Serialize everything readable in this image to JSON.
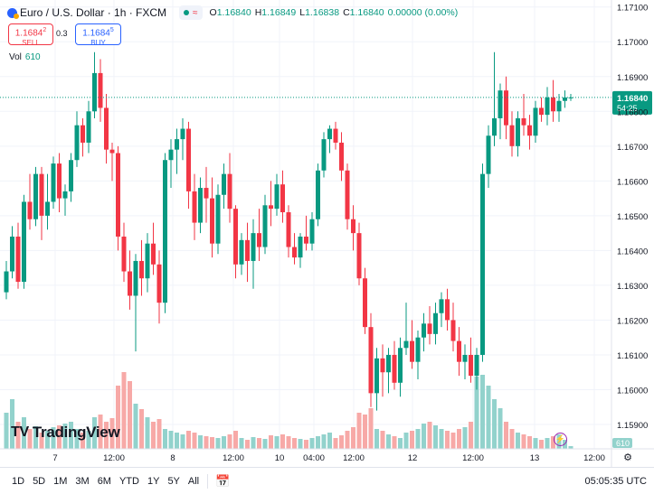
{
  "header": {
    "title": "Euro / U.S. Dollar · 1h · FXCM",
    "ohlc": [
      {
        "k": "O",
        "v": "1.16840"
      },
      {
        "k": "H",
        "v": "1.16849"
      },
      {
        "k": "L",
        "v": "1.16838"
      },
      {
        "k": "C",
        "v": "1.16840"
      },
      {
        "k": "",
        "v": "0.00000 (0.00%)"
      }
    ]
  },
  "trade": {
    "sell_price_main": "1.1684",
    "sell_price_sup": "2",
    "sell_label": "SELL",
    "spread": "0.3",
    "buy_price_main": "1.1684",
    "buy_price_sup": "5",
    "buy_label": "BUY"
  },
  "volume": {
    "label": "Vol",
    "value": "610",
    "tag": "610"
  },
  "price_tag": {
    "value": "1.16840",
    "countdown": "54:25"
  },
  "logo": {
    "text": "TradingView",
    "mark": "TV"
  },
  "bottom": {
    "ranges": [
      "1D",
      "5D",
      "1M",
      "3M",
      "6M",
      "YTD",
      "1Y",
      "5Y",
      "All"
    ],
    "clock": "05:05:35 UTC"
  },
  "colors": {
    "up": "#089981",
    "down": "#f23645",
    "vol_up": "#92d2cc",
    "vol_down": "#f7a9a7",
    "grid": "#f0f3fa"
  },
  "chart_data": {
    "type": "candlestick",
    "ylim": [
      1.1583,
      1.1712
    ],
    "y_ticks": [
      "1.17100",
      "1.17000",
      "1.16900",
      "1.16800",
      "1.16700",
      "1.16600",
      "1.16500",
      "1.16400",
      "1.16300",
      "1.16200",
      "1.16100",
      "1.16000",
      "1.15900"
    ],
    "x_ticks": [
      "7",
      "12:00",
      "8",
      "12:00",
      "10",
      "04:00",
      "12:00",
      "12",
      "12:00",
      "13",
      "12:00"
    ],
    "last_price": 1.1684,
    "candles": [
      [
        1.1628,
        1.1637,
        1.1626,
        1.1634
      ],
      [
        1.1634,
        1.1647,
        1.1632,
        1.1644
      ],
      [
        1.1644,
        1.1648,
        1.1629,
        1.1631
      ],
      [
        1.1631,
        1.1656,
        1.1629,
        1.1654
      ],
      [
        1.1654,
        1.1662,
        1.1646,
        1.1649
      ],
      [
        1.1649,
        1.1664,
        1.1647,
        1.1662
      ],
      [
        1.1662,
        1.1664,
        1.1643,
        1.165
      ],
      [
        1.165,
        1.1662,
        1.1646,
        1.1654
      ],
      [
        1.1654,
        1.1667,
        1.1652,
        1.1665
      ],
      [
        1.1665,
        1.1668,
        1.1651,
        1.1655
      ],
      [
        1.1655,
        1.1659,
        1.165,
        1.1657
      ],
      [
        1.1657,
        1.1668,
        1.1654,
        1.1666
      ],
      [
        1.1666,
        1.168,
        1.1664,
        1.1676
      ],
      [
        1.1676,
        1.1678,
        1.1667,
        1.1671
      ],
      [
        1.1671,
        1.1683,
        1.1668,
        1.168
      ],
      [
        1.168,
        1.1697,
        1.1678,
        1.1691
      ],
      [
        1.1691,
        1.1695,
        1.1677,
        1.1681
      ],
      [
        1.1681,
        1.1685,
        1.1665,
        1.1669
      ],
      [
        1.1669,
        1.1671,
        1.166,
        1.1668
      ],
      [
        1.1668,
        1.167,
        1.164,
        1.1644
      ],
      [
        1.1644,
        1.1648,
        1.1631,
        1.1634
      ],
      [
        1.1634,
        1.164,
        1.1623,
        1.1627
      ],
      [
        1.1627,
        1.1639,
        1.1611,
        1.1637
      ],
      [
        1.1637,
        1.1643,
        1.1627,
        1.1632
      ],
      [
        1.1632,
        1.1645,
        1.1628,
        1.1642
      ],
      [
        1.1642,
        1.1648,
        1.1633,
        1.1636
      ],
      [
        1.1636,
        1.164,
        1.1619,
        1.1625
      ],
      [
        1.1625,
        1.1668,
        1.1622,
        1.1666
      ],
      [
        1.1666,
        1.1672,
        1.1658,
        1.1669
      ],
      [
        1.1669,
        1.1675,
        1.1662,
        1.1672
      ],
      [
        1.1672,
        1.1678,
        1.1666,
        1.1675
      ],
      [
        1.1675,
        1.1677,
        1.1652,
        1.1657
      ],
      [
        1.1657,
        1.1662,
        1.1643,
        1.1648
      ],
      [
        1.1648,
        1.1661,
        1.1645,
        1.1658
      ],
      [
        1.1658,
        1.1664,
        1.1648,
        1.1655
      ],
      [
        1.1655,
        1.1661,
        1.1638,
        1.1642
      ],
      [
        1.1642,
        1.1659,
        1.1639,
        1.1656
      ],
      [
        1.1656,
        1.1665,
        1.1652,
        1.1662
      ],
      [
        1.1662,
        1.1668,
        1.1648,
        1.1652
      ],
      [
        1.1652,
        1.1653,
        1.1632,
        1.1636
      ],
      [
        1.1636,
        1.1645,
        1.1633,
        1.1643
      ],
      [
        1.1643,
        1.1648,
        1.1631,
        1.1637
      ],
      [
        1.1637,
        1.1649,
        1.1629,
        1.1645
      ],
      [
        1.1645,
        1.1652,
        1.1637,
        1.1641
      ],
      [
        1.1641,
        1.1656,
        1.1639,
        1.1653
      ],
      [
        1.1653,
        1.166,
        1.1647,
        1.1652
      ],
      [
        1.1652,
        1.1662,
        1.165,
        1.1659
      ],
      [
        1.1659,
        1.1663,
        1.1648,
        1.1651
      ],
      [
        1.1651,
        1.1653,
        1.1638,
        1.1641
      ],
      [
        1.1641,
        1.1645,
        1.1636,
        1.1638
      ],
      [
        1.1638,
        1.1645,
        1.1635,
        1.1644
      ],
      [
        1.1644,
        1.165,
        1.164,
        1.1642
      ],
      [
        1.1642,
        1.1651,
        1.164,
        1.1649
      ],
      [
        1.1649,
        1.1665,
        1.1647,
        1.1663
      ],
      [
        1.1663,
        1.1674,
        1.1661,
        1.1672
      ],
      [
        1.1672,
        1.1676,
        1.1668,
        1.1675
      ],
      [
        1.1675,
        1.1677,
        1.1669,
        1.1671
      ],
      [
        1.1671,
        1.1674,
        1.166,
        1.1663
      ],
      [
        1.1663,
        1.1665,
        1.1646,
        1.1649
      ],
      [
        1.1649,
        1.1653,
        1.164,
        1.1645
      ],
      [
        1.1645,
        1.1648,
        1.163,
        1.1632
      ],
      [
        1.1632,
        1.1635,
        1.1616,
        1.1618
      ],
      [
        1.1618,
        1.1622,
        1.1595,
        1.1599
      ],
      [
        1.1599,
        1.1612,
        1.1594,
        1.1609
      ],
      [
        1.1609,
        1.1613,
        1.1598,
        1.1605
      ],
      [
        1.1605,
        1.1612,
        1.1599,
        1.161
      ],
      [
        1.161,
        1.1614,
        1.16,
        1.1602
      ],
      [
        1.1602,
        1.1615,
        1.1598,
        1.1612
      ],
      [
        1.1612,
        1.1625,
        1.161,
        1.1614
      ],
      [
        1.1614,
        1.162,
        1.1606,
        1.1608
      ],
      [
        1.1608,
        1.1617,
        1.1603,
        1.1615
      ],
      [
        1.1615,
        1.1622,
        1.1611,
        1.1619
      ],
      [
        1.1619,
        1.1624,
        1.1613,
        1.1616
      ],
      [
        1.1616,
        1.1625,
        1.1613,
        1.1622
      ],
      [
        1.1622,
        1.1628,
        1.1618,
        1.1626
      ],
      [
        1.1626,
        1.1629,
        1.1617,
        1.162
      ],
      [
        1.162,
        1.1625,
        1.1611,
        1.1614
      ],
      [
        1.1614,
        1.1618,
        1.1604,
        1.1608
      ],
      [
        1.1608,
        1.1613,
        1.1603,
        1.161
      ],
      [
        1.161,
        1.1615,
        1.1602,
        1.1604
      ],
      [
        1.1604,
        1.1612,
        1.16,
        1.161
      ],
      [
        1.161,
        1.1665,
        1.1608,
        1.1662
      ],
      [
        1.1662,
        1.1676,
        1.1658,
        1.1673
      ],
      [
        1.1673,
        1.1697,
        1.167,
        1.1678
      ],
      [
        1.1678,
        1.1688,
        1.1672,
        1.1686
      ],
      [
        1.1686,
        1.169,
        1.1672,
        1.1676
      ],
      [
        1.1676,
        1.168,
        1.1667,
        1.167
      ],
      [
        1.167,
        1.168,
        1.1667,
        1.1678
      ],
      [
        1.1678,
        1.1685,
        1.1673,
        1.1676
      ],
      [
        1.1676,
        1.1679,
        1.1669,
        1.1673
      ],
      [
        1.1673,
        1.1683,
        1.1671,
        1.1681
      ],
      [
        1.1681,
        1.1684,
        1.1677,
        1.1679
      ],
      [
        1.1679,
        1.1687,
        1.1676,
        1.1684
      ],
      [
        1.1684,
        1.1689,
        1.1677,
        1.168
      ],
      [
        1.168,
        1.1685,
        1.1677,
        1.1683
      ],
      [
        1.1683,
        1.1686,
        1.1681,
        1.1684
      ],
      [
        1.1684,
        1.1685,
        1.1683,
        1.1684
      ]
    ],
    "volumes": [
      40,
      55,
      30,
      35,
      22,
      25,
      18,
      20,
      24,
      26,
      28,
      30,
      22,
      18,
      20,
      35,
      38,
      30,
      34,
      70,
      85,
      75,
      50,
      44,
      35,
      30,
      33,
      22,
      20,
      18,
      16,
      20,
      18,
      15,
      14,
      13,
      12,
      14,
      16,
      20,
      12,
      10,
      13,
      12,
      11,
      15,
      14,
      16,
      14,
      12,
      11,
      10,
      12,
      14,
      16,
      18,
      12,
      15,
      20,
      24,
      40,
      38,
      45,
      22,
      20,
      16,
      14,
      12,
      18,
      20,
      22,
      28,
      30,
      26,
      22,
      20,
      18,
      22,
      24,
      30,
      80,
      82,
      70,
      55,
      45,
      30,
      22,
      18,
      16,
      14,
      12,
      10,
      12,
      14,
      16,
      10,
      3
    ]
  }
}
